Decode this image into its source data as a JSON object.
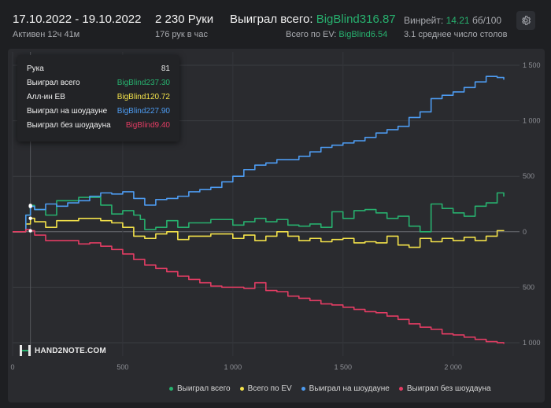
{
  "header": {
    "date_range": "17.10.2022 - 19.10.2022",
    "active": "Активен 12ч 41м",
    "hands": "2 230 Руки",
    "hands_per_hour": "176 рук в час",
    "won_total_label": "Выиграл всего:",
    "won_total_value": "BigBlind316.87",
    "ev_label": "Всего по EV:",
    "ev_value": "BigBlind6.54",
    "winrate_label": "Винрейт:",
    "winrate_value": "14.21",
    "winrate_unit": "бб/100",
    "avg_tables": "3.1 среднее число столов"
  },
  "tooltip": {
    "rows": [
      {
        "label": "Рука",
        "value": "81",
        "color": "#e6e6e6"
      },
      {
        "label": "Выиграл всего",
        "value": "BigBlind237.30",
        "color": "#27b06e"
      },
      {
        "label": "Алл-ин EB",
        "value": "BigBlind120.72",
        "color": "#f2e14a"
      },
      {
        "label": "Выиграл на шоудауне",
        "value": "BigBlind227.90",
        "color": "#4d9bf0"
      },
      {
        "label": "Выиграл без шоудауна",
        "value": "BigBlind9.40",
        "color": "#e23c63"
      }
    ]
  },
  "logo": {
    "text": "HAND2NOTE.COM",
    "icon": "h2n-logo-icon"
  },
  "colors": {
    "green": "#27b06e",
    "yellow": "#f2e14a",
    "blue": "#4d9bf0",
    "red": "#e23c63"
  },
  "chart_data": {
    "type": "line",
    "xlim": [
      0,
      2230
    ],
    "ylim": [
      -1050,
      1550
    ],
    "x_ticks": [
      0,
      500,
      1000,
      1500,
      2000
    ],
    "x_tick_labels": [
      "0",
      "500",
      "1 000",
      "1 500",
      "2 000"
    ],
    "y_ticks": [
      1500,
      1000,
      500,
      0,
      -500,
      -1000
    ],
    "y_tick_labels": [
      "1 500",
      "1 000",
      "500",
      "0",
      "500",
      "1 000"
    ],
    "grid": true,
    "legend_position": "bottom-right",
    "series": [
      {
        "name": "Выиграл всего",
        "color": "#27b06e",
        "x": [
          0,
          60,
          81,
          100,
          150,
          200,
          300,
          400,
          450,
          500,
          550,
          580,
          600,
          650,
          700,
          750,
          800,
          900,
          1000,
          1050,
          1100,
          1150,
          1200,
          1250,
          1300,
          1350,
          1400,
          1450,
          1500,
          1550,
          1600,
          1650,
          1700,
          1750,
          1800,
          1850,
          1900,
          1950,
          2000,
          2050,
          2100,
          2150,
          2200,
          2230
        ],
        "values": [
          0,
          150,
          237,
          200,
          150,
          280,
          310,
          240,
          160,
          190,
          150,
          110,
          20,
          40,
          100,
          40,
          80,
          110,
          60,
          90,
          120,
          90,
          110,
          60,
          50,
          70,
          40,
          180,
          120,
          190,
          200,
          170,
          120,
          140,
          50,
          0,
          250,
          210,
          170,
          140,
          230,
          260,
          350,
          317
        ]
      },
      {
        "name": "Всего по EV",
        "color": "#f2e14a",
        "x": [
          0,
          60,
          81,
          100,
          150,
          200,
          300,
          400,
          450,
          500,
          550,
          600,
          650,
          700,
          750,
          800,
          900,
          1000,
          1050,
          1100,
          1150,
          1200,
          1250,
          1300,
          1350,
          1400,
          1450,
          1500,
          1550,
          1600,
          1650,
          1700,
          1750,
          1800,
          1850,
          1900,
          1950,
          2000,
          2050,
          2100,
          2150,
          2200,
          2230
        ],
        "values": [
          0,
          70,
          121,
          90,
          40,
          100,
          120,
          100,
          80,
          40,
          -40,
          -60,
          -20,
          0,
          -70,
          -40,
          -20,
          -60,
          -30,
          -80,
          -40,
          0,
          -40,
          -80,
          -60,
          -90,
          -70,
          -60,
          -100,
          -90,
          -100,
          -40,
          -120,
          -140,
          -60,
          -90,
          -60,
          -80,
          -50,
          -80,
          -40,
          10,
          7
        ]
      },
      {
        "name": "Выиграл на шоудауне",
        "color": "#4d9bf0",
        "x": [
          0,
          60,
          81,
          100,
          150,
          200,
          250,
          300,
          350,
          400,
          450,
          500,
          550,
          600,
          650,
          700,
          750,
          800,
          850,
          900,
          950,
          1000,
          1050,
          1100,
          1150,
          1200,
          1250,
          1300,
          1350,
          1400,
          1450,
          1500,
          1550,
          1600,
          1650,
          1700,
          1750,
          1800,
          1850,
          1900,
          1950,
          2000,
          2050,
          2100,
          2150,
          2200,
          2230
        ],
        "values": [
          0,
          150,
          228,
          200,
          250,
          230,
          260,
          280,
          320,
          350,
          340,
          360,
          300,
          240,
          290,
          300,
          320,
          360,
          380,
          400,
          450,
          500,
          560,
          600,
          620,
          650,
          650,
          680,
          720,
          760,
          780,
          800,
          820,
          850,
          890,
          920,
          950,
          1030,
          1080,
          1200,
          1230,
          1260,
          1300,
          1350,
          1400,
          1390,
          1370
        ]
      },
      {
        "name": "Выиграл без шоудауна",
        "color": "#e23c63",
        "x": [
          0,
          60,
          81,
          100,
          150,
          200,
          300,
          350,
          400,
          450,
          500,
          550,
          600,
          650,
          700,
          750,
          800,
          850,
          900,
          950,
          1000,
          1050,
          1100,
          1150,
          1200,
          1250,
          1300,
          1350,
          1400,
          1450,
          1500,
          1550,
          1600,
          1650,
          1700,
          1750,
          1800,
          1850,
          1900,
          1950,
          2000,
          2050,
          2100,
          2150,
          2200,
          2230
        ],
        "values": [
          0,
          20,
          9,
          -30,
          -80,
          -80,
          -110,
          -100,
          -130,
          -160,
          -200,
          -250,
          -300,
          -330,
          -360,
          -400,
          -430,
          -460,
          -490,
          -500,
          -500,
          -510,
          -460,
          -530,
          -540,
          -580,
          -600,
          -620,
          -650,
          -660,
          -680,
          -700,
          -720,
          -730,
          -760,
          -790,
          -830,
          -860,
          -880,
          -920,
          -930,
          -950,
          -970,
          -990,
          -1000,
          -1010
        ]
      }
    ]
  }
}
